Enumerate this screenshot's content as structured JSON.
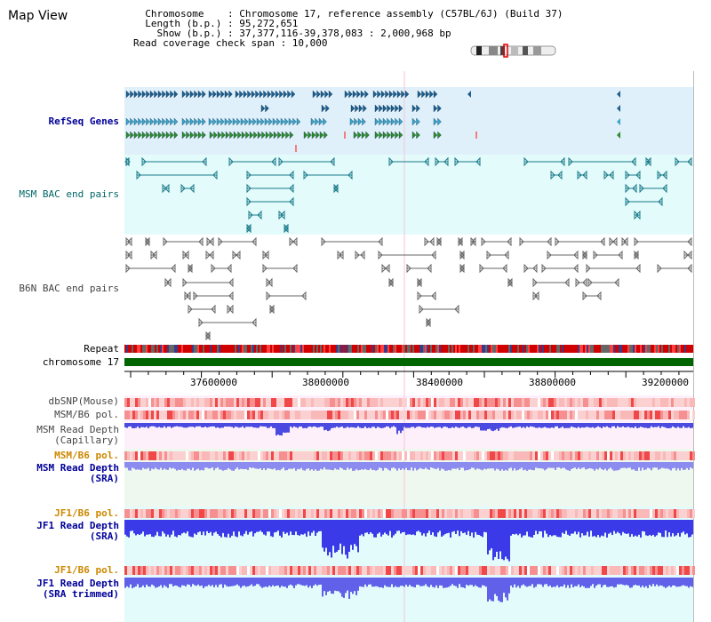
{
  "header": {
    "title": "Map View",
    "info_lines": [
      "  Chromosome    : Chromosome 17, reference assembly (C57BL/6J) (Build 37)",
      "  Length (b.p.) : 95,272,651",
      "    Show (b.p.) : 37,377,116-39,378,083 : 2,000,968 bp",
      "Read coverage check span : 10,000"
    ]
  },
  "tracks": {
    "refseq": "RefSeq Genes",
    "msm_bac": "MSM BAC end pairs",
    "b6n_bac": "B6N BAC end pairs",
    "repeat": "Repeat",
    "chromosome": "chromosome 17",
    "dbsnp": "dbSNP(Mouse)",
    "msm_b6_pol_1": "MSM/B6 pol.",
    "msm_depth_cap": "MSM Read Depth\n(Capillary)",
    "msm_b6_pol_2": "MSM/B6 pol.",
    "msm_depth_sra": "MSM Read Depth\n(SRA)",
    "jf1_b6_pol_1": "JF1/B6 pol.",
    "jf1_depth_sra": "JF1 Read Depth\n(SRA)",
    "jf1_b6_pol_2": "JF1/B6 pol.",
    "jf1_depth_trim": "JF1 Read Depth\n(SRA trimmed)"
  },
  "axis": {
    "ticks": [
      "37600000",
      "38000000",
      "38400000",
      "38800000",
      "39200000"
    ]
  },
  "colors": {
    "refseq_bg": "#dff0fa",
    "bac_bg": "#e3fbfb",
    "chrom": "#006400",
    "repeat": "#c00000",
    "depth_blue": "#5a5af0",
    "accent_blue": "#000099",
    "orange_label": "#cc8800",
    "teal_label": "#006666"
  }
}
